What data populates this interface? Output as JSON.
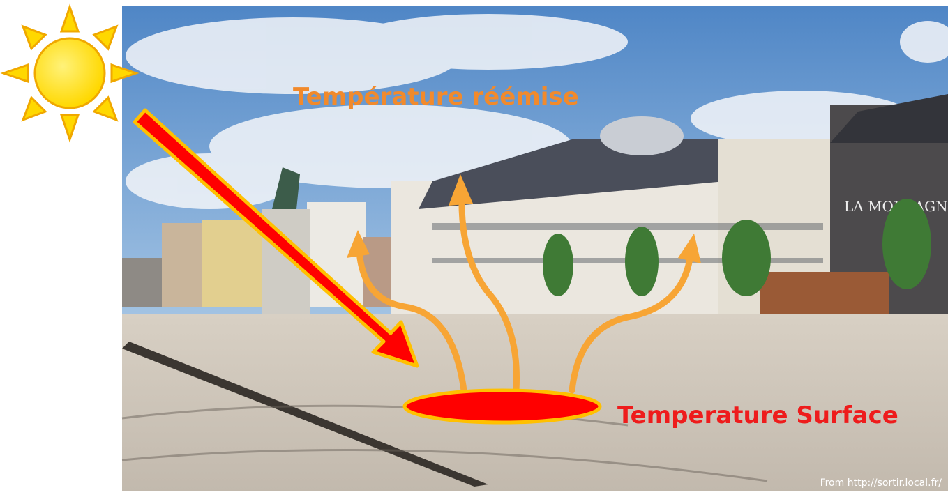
{
  "annotations": {
    "reemitted": "Température réémise",
    "surface": "Temperature Surface"
  },
  "photo": {
    "sign": "LA MONTAGN",
    "credit": "From http://sortir.local.fr/"
  }
}
